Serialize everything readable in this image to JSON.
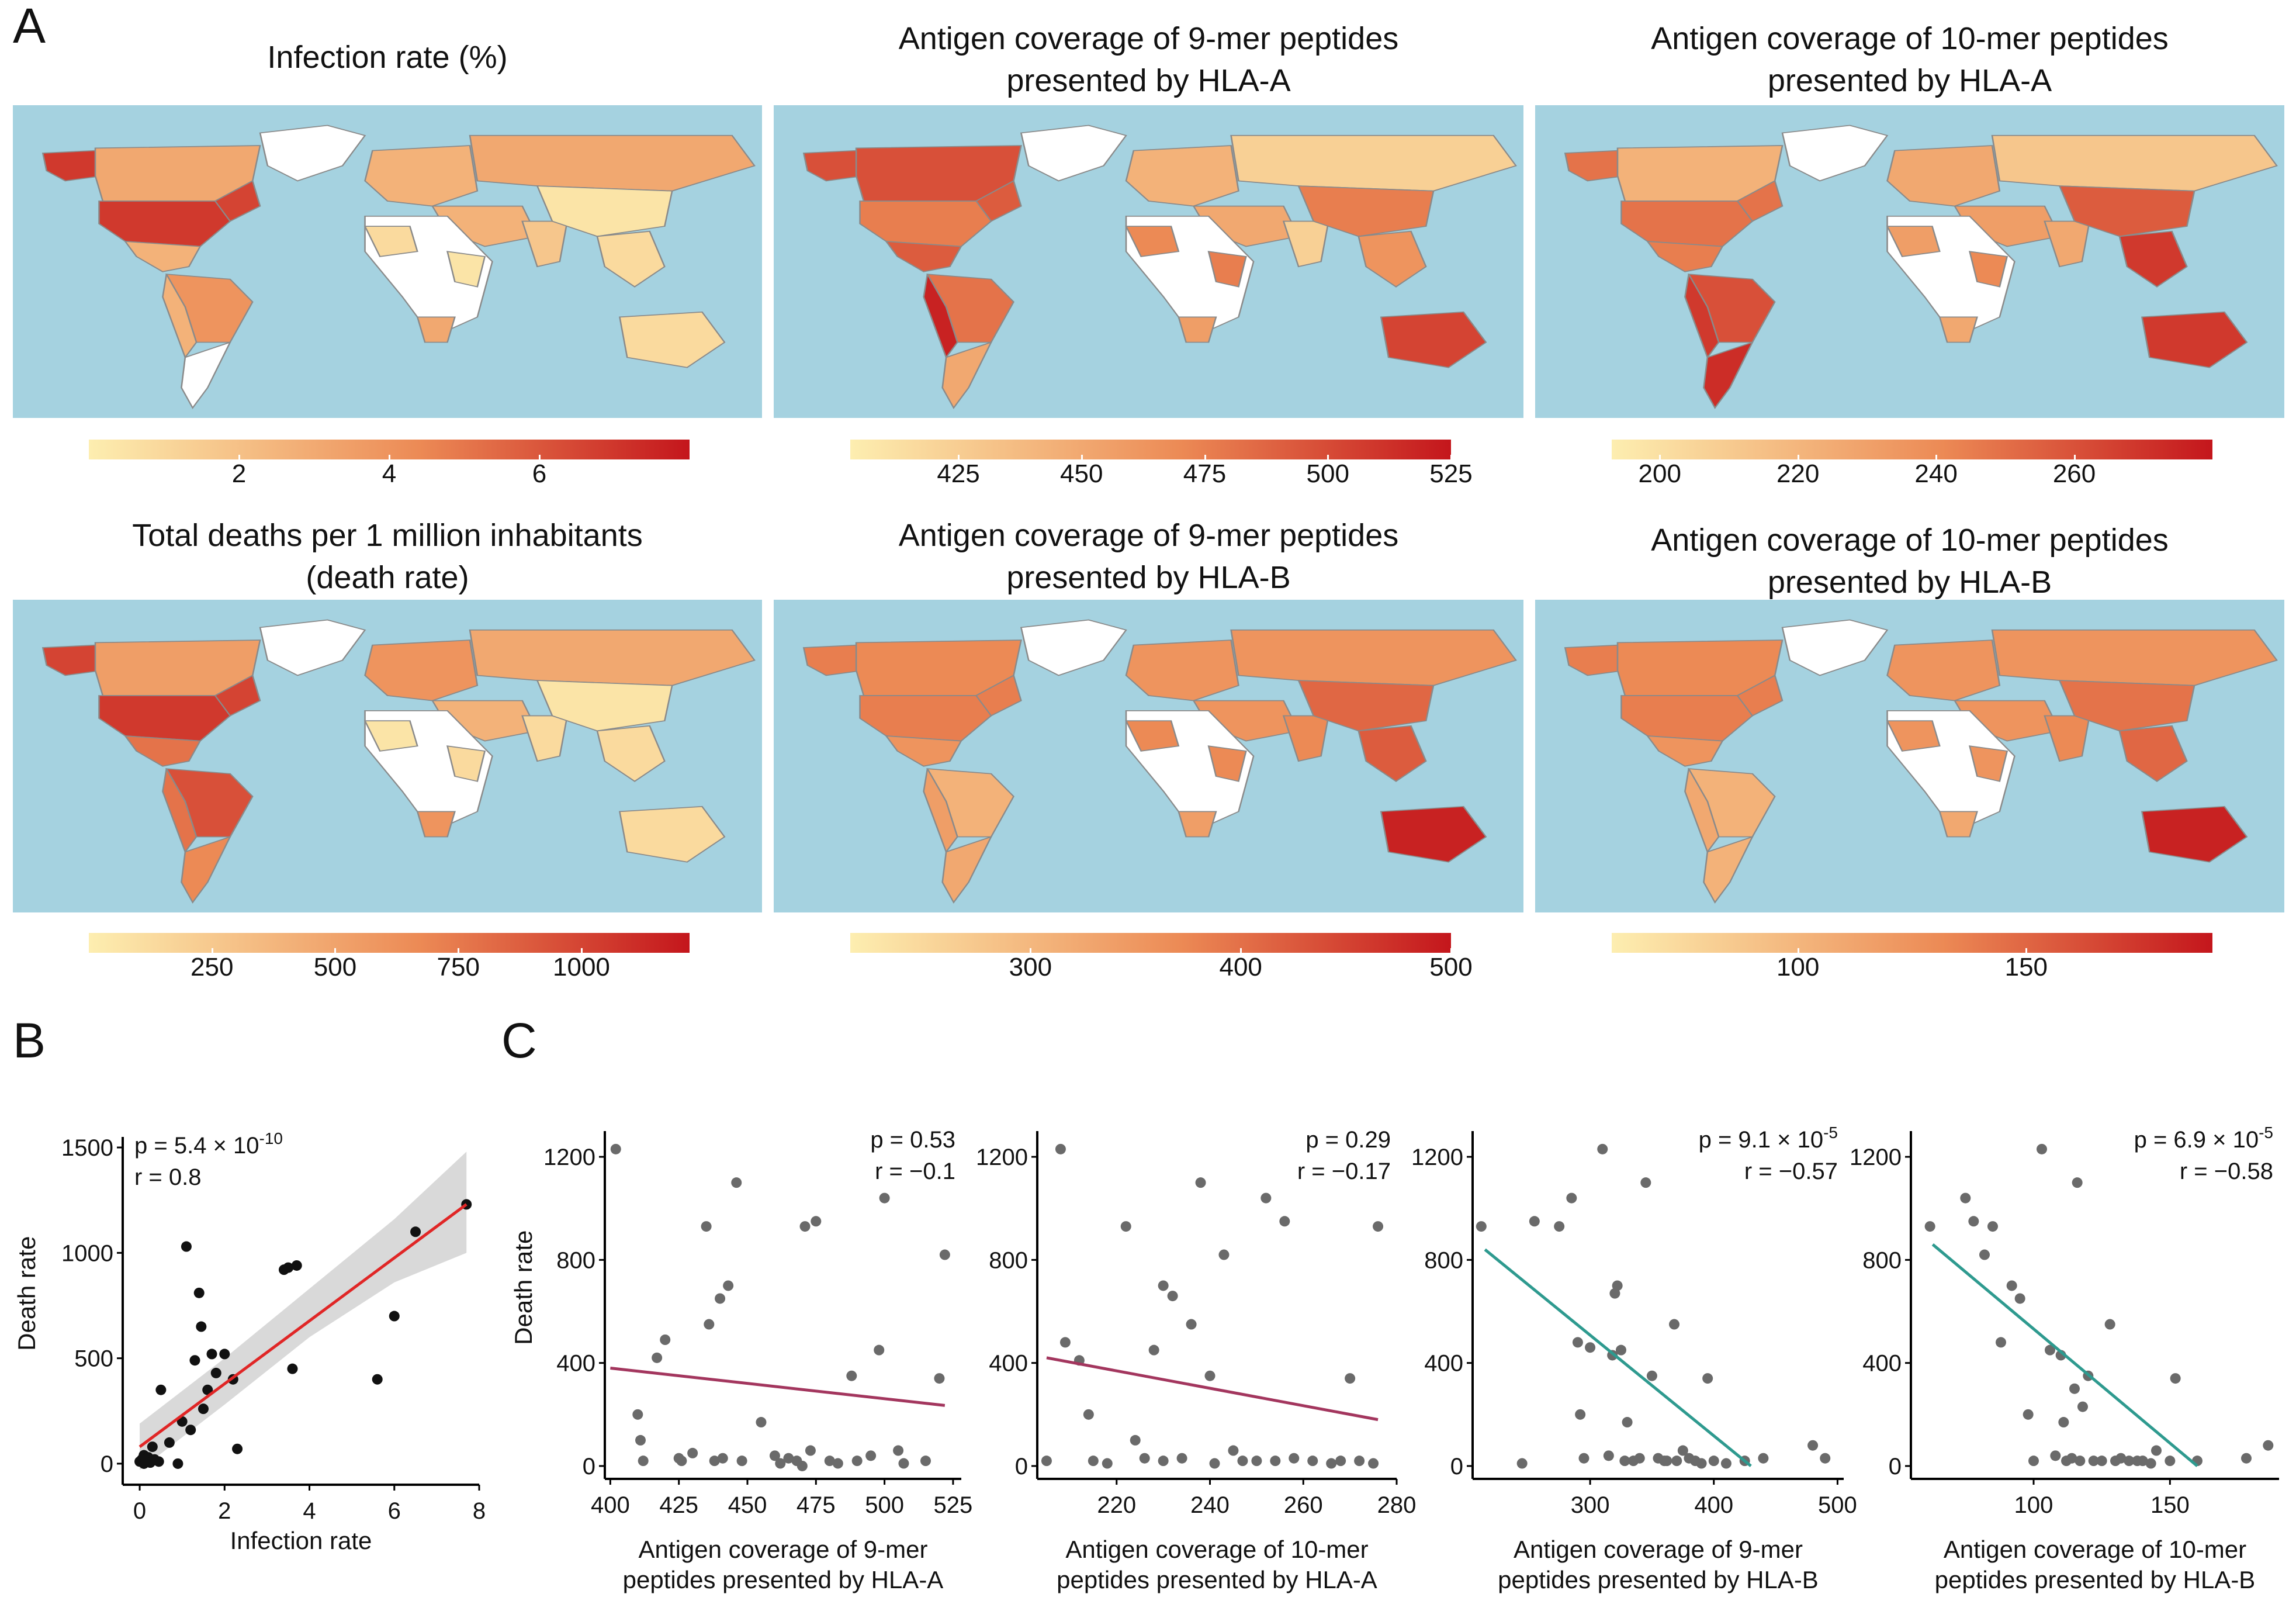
{
  "panel_labels": {
    "a": "A",
    "b": "B",
    "c": "C"
  },
  "colors": {
    "ocean": "#a5d2e0",
    "low": "#fdeeb0",
    "mid": "#ec8a55",
    "high": "#c4161c",
    "land_empty": "#ffffff",
    "border": "#8a8a8a",
    "fit_red": "#e02626",
    "fit_purple": "#a3365e",
    "fit_teal": "#2e9a8f",
    "ci_band": "#d2d2d2",
    "point_dark": "#111111",
    "point_grey": "#6a6a6a"
  },
  "maps": [
    {
      "id": "infection",
      "title_lines": [
        "Infection rate (%)"
      ],
      "ticks": [
        "2",
        "4",
        "6"
      ],
      "tick_positions": [
        0.25,
        0.5,
        0.75
      ],
      "fills": {
        "north_america": 0.8,
        "usa": 0.85,
        "canada": 0.35,
        "alaska": 0.85,
        "greenland": -1,
        "central_america": 0.3,
        "south_america": 0.45,
        "andes": 0.3,
        "patagonia": -1,
        "europe": 0.3,
        "russia": 0.35,
        "africa": -1,
        "west_africa": 0.1,
        "east_africa": 0.05,
        "south_africa": 0.35,
        "middle_east": 0.3,
        "china": 0.05,
        "india": 0.2,
        "se_asia": 0.1,
        "australia": 0.1
      }
    },
    {
      "id": "hla_a_9",
      "title_lines": [
        "Antigen coverage of 9-mer peptides",
        "presented by HLA-A"
      ],
      "ticks": [
        "425",
        "450",
        "475",
        "500",
        "525"
      ],
      "tick_positions": [
        0.18,
        0.385,
        0.59,
        0.795,
        1.0
      ],
      "fills": {
        "north_america": 0.7,
        "usa": 0.55,
        "canada": 0.75,
        "alaska": 0.75,
        "greenland": -1,
        "central_america": 0.7,
        "south_america": 0.6,
        "andes": 0.95,
        "patagonia": 0.35,
        "europe": 0.3,
        "russia": 0.15,
        "africa": -1,
        "west_africa": 0.5,
        "east_africa": 0.55,
        "south_africa": 0.4,
        "middle_east": 0.35,
        "china": 0.55,
        "india": 0.15,
        "se_asia": 0.45,
        "australia": 0.8
      }
    },
    {
      "id": "hla_a_10",
      "title_lines": [
        "Antigen coverage of 10-mer peptides",
        "presented by HLA-A"
      ],
      "ticks": [
        "200",
        "220",
        "240",
        "260"
      ],
      "tick_positions": [
        0.08,
        0.31,
        0.54,
        0.77
      ],
      "fills": {
        "north_america": 0.6,
        "usa": 0.6,
        "canada": 0.3,
        "alaska": 0.6,
        "greenland": -1,
        "central_america": 0.55,
        "south_america": 0.75,
        "andes": 0.85,
        "patagonia": 0.9,
        "europe": 0.35,
        "russia": 0.2,
        "africa": -1,
        "west_africa": 0.4,
        "east_africa": 0.5,
        "south_africa": 0.35,
        "middle_east": 0.4,
        "china": 0.7,
        "india": 0.35,
        "se_asia": 0.85,
        "australia": 0.85
      }
    },
    {
      "id": "death",
      "title_lines": [
        "Total deaths per 1 million inhabitants",
        "(death rate)"
      ],
      "ticks": [
        "250",
        "500",
        "750",
        "1000"
      ],
      "tick_positions": [
        0.205,
        0.41,
        0.615,
        0.82
      ],
      "fills": {
        "north_america": 0.8,
        "usa": 0.85,
        "canada": 0.4,
        "alaska": 0.8,
        "greenland": -1,
        "central_america": 0.6,
        "south_america": 0.75,
        "andes": 0.6,
        "patagonia": 0.5,
        "europe": 0.45,
        "russia": 0.35,
        "africa": -1,
        "west_africa": 0.05,
        "east_africa": 0.1,
        "south_africa": 0.45,
        "middle_east": 0.3,
        "china": 0.05,
        "india": 0.1,
        "se_asia": 0.1,
        "australia": 0.1
      }
    },
    {
      "id": "hla_b_9",
      "title_lines": [
        "Antigen coverage of 9-mer peptides",
        "presented by HLA-B"
      ],
      "ticks": [
        "300",
        "400",
        "500"
      ],
      "tick_positions": [
        0.3,
        0.65,
        1.0
      ],
      "fills": {
        "north_america": 0.55,
        "usa": 0.55,
        "canada": 0.5,
        "alaska": 0.55,
        "greenland": -1,
        "central_america": 0.45,
        "south_america": 0.3,
        "andes": 0.4,
        "patagonia": 0.35,
        "europe": 0.45,
        "russia": 0.45,
        "africa": -1,
        "west_africa": 0.5,
        "east_africa": 0.5,
        "south_africa": 0.4,
        "middle_east": 0.45,
        "china": 0.65,
        "india": 0.5,
        "se_asia": 0.7,
        "australia": 0.95
      }
    },
    {
      "id": "hla_b_10",
      "title_lines": [
        "Antigen coverage of 10-mer peptides",
        "presented by HLA-B"
      ],
      "ticks": [
        "100",
        "150"
      ],
      "tick_positions": [
        0.31,
        0.69
      ],
      "fills": {
        "north_america": 0.55,
        "usa": 0.55,
        "canada": 0.5,
        "alaska": 0.55,
        "greenland": -1,
        "central_america": 0.45,
        "south_america": 0.3,
        "andes": 0.35,
        "patagonia": 0.3,
        "europe": 0.45,
        "russia": 0.45,
        "africa": -1,
        "west_africa": 0.45,
        "east_africa": 0.45,
        "south_africa": 0.35,
        "middle_east": 0.45,
        "china": 0.6,
        "india": 0.5,
        "se_asia": 0.65,
        "australia": 0.95
      }
    }
  ],
  "chart_data": [
    {
      "id": "B",
      "type": "scatter",
      "xlabel": "Infection rate",
      "ylabel": "Death rate",
      "xlim": [
        -0.4,
        8
      ],
      "ylim": [
        -100,
        1550
      ],
      "xticks": [
        0,
        2,
        4,
        6,
        8
      ],
      "yticks": [
        0,
        500,
        1000,
        1500
      ],
      "stats": {
        "p_base": "p = 5.4 × 10",
        "p_exp": "-10",
        "r": "r = 0.8"
      },
      "fit": {
        "x": [
          0,
          7.7
        ],
        "y": [
          80,
          1230
        ]
      },
      "ci_band": {
        "x": [
          0,
          2,
          4,
          6,
          7.7
        ],
        "upper": [
          190,
          500,
          830,
          1160,
          1480
        ],
        "lower": [
          -30,
          280,
          600,
          860,
          1000
        ]
      },
      "point_style": "dark",
      "points": {
        "x": [
          0.0,
          0.05,
          0.1,
          0.1,
          0.15,
          0.2,
          0.25,
          0.3,
          0.35,
          0.45,
          0.5,
          0.7,
          0.9,
          1.0,
          1.1,
          1.2,
          1.3,
          1.4,
          1.45,
          1.5,
          1.6,
          1.7,
          1.8,
          2.0,
          2.2,
          2.3,
          3.4,
          3.5,
          3.6,
          3.7,
          5.6,
          6.0,
          6.5,
          7.7
        ],
        "y": [
          10,
          20,
          0,
          40,
          10,
          30,
          5,
          80,
          20,
          10,
          350,
          100,
          0,
          200,
          1030,
          160,
          490,
          810,
          650,
          260,
          350,
          520,
          430,
          520,
          400,
          70,
          920,
          930,
          450,
          940,
          400,
          700,
          1100,
          1230
        ]
      }
    },
    {
      "id": "C1",
      "type": "scatter",
      "xlabel_lines": [
        "Antigen coverage of 9-mer",
        "peptides presented by HLA-A"
      ],
      "ylabel": "Death rate",
      "xlim": [
        398,
        528
      ],
      "ylim": [
        -50,
        1300
      ],
      "xticks": [
        400,
        425,
        450,
        475,
        500,
        525
      ],
      "yticks": [
        0,
        400,
        800,
        1200
      ],
      "stats": {
        "p_base": "p = 0.53",
        "p_exp": "",
        "r": "r = −0.1"
      },
      "fit": {
        "x": [
          400,
          522
        ],
        "y": [
          380,
          235
        ]
      },
      "point_style": "grey",
      "points": {
        "x": [
          402,
          410,
          411,
          412,
          417,
          420,
          425,
          426,
          430,
          435,
          436,
          438,
          440,
          441,
          443,
          446,
          448,
          455,
          460,
          462,
          465,
          468,
          470,
          471,
          473,
          475,
          480,
          483,
          488,
          490,
          495,
          498,
          500,
          505,
          507,
          515,
          520,
          522
        ],
        "y": [
          1230,
          200,
          100,
          20,
          420,
          490,
          30,
          20,
          50,
          930,
          550,
          20,
          650,
          30,
          700,
          1100,
          20,
          170,
          40,
          10,
          30,
          20,
          0,
          930,
          60,
          950,
          20,
          10,
          350,
          20,
          40,
          450,
          1040,
          60,
          10,
          20,
          340,
          820
        ]
      }
    },
    {
      "id": "C2",
      "type": "scatter",
      "xlabel_lines": [
        "Antigen coverage of 10-mer",
        "peptides presented by HLA-A"
      ],
      "ylabel": "",
      "xlim": [
        203,
        280
      ],
      "ylim": [
        -50,
        1300
      ],
      "xticks": [
        220,
        240,
        260,
        280
      ],
      "yticks": [
        0,
        400,
        800,
        1200
      ],
      "stats": {
        "p_base": "p = 0.29",
        "p_exp": "",
        "r": "r = −0.17"
      },
      "fit": {
        "x": [
          205,
          276
        ],
        "y": [
          420,
          180
        ]
      },
      "point_style": "grey",
      "points": {
        "x": [
          205,
          208,
          209,
          212,
          214,
          215,
          218,
          222,
          224,
          226,
          228,
          230,
          230,
          232,
          234,
          236,
          238,
          240,
          241,
          243,
          245,
          247,
          250,
          252,
          254,
          256,
          258,
          262,
          266,
          268,
          270,
          272,
          275,
          276
        ],
        "y": [
          20,
          1230,
          480,
          410,
          200,
          20,
          10,
          930,
          100,
          30,
          450,
          700,
          20,
          660,
          30,
          550,
          1100,
          350,
          10,
          820,
          60,
          20,
          20,
          1040,
          20,
          950,
          30,
          20,
          10,
          20,
          340,
          20,
          10,
          930
        ]
      }
    },
    {
      "id": "C3",
      "type": "scatter",
      "xlabel_lines": [
        "Antigen coverage of 9-mer",
        "peptides presented by HLA-B"
      ],
      "ylabel": "",
      "xlim": [
        205,
        505
      ],
      "ylim": [
        -50,
        1300
      ],
      "xticks": [
        300,
        400,
        500
      ],
      "yticks": [
        0,
        400,
        800,
        1200
      ],
      "stats": {
        "p_base": "p = 9.1 × 10",
        "p_exp": "-5",
        "r": "r = −0.57"
      },
      "fit": {
        "x": [
          215,
          430
        ],
        "y": [
          840,
          0
        ]
      },
      "point_style": "grey",
      "points": {
        "x": [
          212,
          245,
          255,
          275,
          285,
          290,
          292,
          295,
          300,
          310,
          315,
          318,
          320,
          322,
          325,
          328,
          330,
          335,
          340,
          345,
          350,
          355,
          360,
          362,
          368,
          370,
          375,
          380,
          385,
          390,
          395,
          400,
          410,
          425,
          440,
          480,
          490
        ],
        "y": [
          930,
          10,
          950,
          930,
          1040,
          480,
          200,
          30,
          460,
          1230,
          40,
          430,
          670,
          700,
          450,
          20,
          170,
          20,
          30,
          1100,
          350,
          30,
          20,
          20,
          550,
          20,
          60,
          30,
          20,
          10,
          340,
          20,
          10,
          20,
          30,
          80,
          30
        ]
      }
    },
    {
      "id": "C4",
      "type": "scatter",
      "xlabel_lines": [
        "Antigen coverage of 10-mer",
        "peptides presented by HLA-B"
      ],
      "ylabel": "",
      "xlim": [
        55,
        190
      ],
      "ylim": [
        -50,
        1300
      ],
      "xticks": [
        100,
        150
      ],
      "yticks": [
        0,
        400,
        800,
        1200
      ],
      "stats": {
        "p_base": "p = 6.9 × 10",
        "p_exp": "-5",
        "r": "r = −0.58"
      },
      "fit": {
        "x": [
          63,
          160
        ],
        "y": [
          860,
          0
        ]
      },
      "point_style": "grey",
      "points": {
        "x": [
          62,
          75,
          78,
          82,
          85,
          88,
          92,
          95,
          98,
          100,
          103,
          106,
          108,
          110,
          111,
          112,
          114,
          115,
          116,
          117,
          118,
          120,
          122,
          125,
          128,
          130,
          132,
          135,
          138,
          140,
          143,
          145,
          150,
          152,
          160,
          178,
          186
        ],
        "y": [
          930,
          1040,
          950,
          820,
          930,
          480,
          700,
          650,
          200,
          20,
          1230,
          450,
          40,
          430,
          170,
          20,
          30,
          300,
          1100,
          20,
          230,
          350,
          20,
          20,
          550,
          20,
          30,
          20,
          20,
          20,
          10,
          60,
          20,
          340,
          20,
          30,
          80
        ]
      }
    }
  ]
}
